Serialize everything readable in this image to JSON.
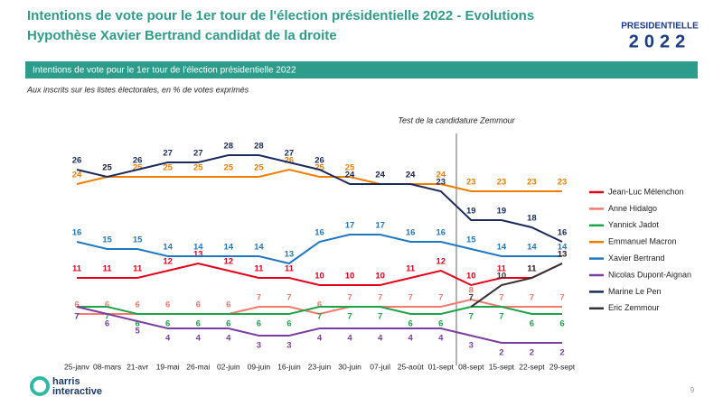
{
  "header": {
    "title_line1": "Intentions de vote pour le 1er tour de l'élection présidentielle 2022 - Evolutions",
    "title_line2": "Hypothèse Xavier Bertrand candidat de la droite",
    "logo_top": "PRESIDENTIELLE",
    "logo_bottom": "2022"
  },
  "banner": "Intentions de vote pour le 1er tour de l'élection présidentielle 2022",
  "note": "Aux inscrits sur les listes électorales, en % de votes exprimés",
  "footer": {
    "brand_line1": "harris",
    "brand_line2": "interactive",
    "page": "9"
  },
  "chart_data": {
    "type": "line",
    "annotation": "Test de la candidature Zemmour",
    "categories": [
      "25-janv",
      "08-mars",
      "21-avr",
      "19-mai",
      "26-mai",
      "02-juin",
      "09-juin",
      "16-juin",
      "23-juin",
      "30-juin",
      "07-juil",
      "25-août",
      "01-sept",
      "08-sept",
      "15-sept",
      "22-sept",
      "29-sept"
    ],
    "ylim": [
      0,
      30
    ],
    "series": [
      {
        "name": "Jean-Luc Mélenchon",
        "color": "#e3001b",
        "values": [
          11,
          11,
          11,
          12,
          13,
          12,
          11,
          11,
          10,
          10,
          10,
          11,
          12,
          10,
          11,
          11,
          13
        ]
      },
      {
        "name": "Anne Hidalgo",
        "color": "#f27a6e",
        "values": [
          6,
          6,
          6,
          6,
          6,
          6,
          7,
          7,
          6,
          7,
          7,
          7,
          7,
          8,
          7,
          7,
          7
        ]
      },
      {
        "name": "Yannick Jadot",
        "color": "#1ea34a",
        "values": [
          7,
          7,
          6,
          6,
          6,
          6,
          6,
          6,
          7,
          7,
          7,
          6,
          6,
          7,
          7,
          6,
          6
        ]
      },
      {
        "name": "Emmanuel Macron",
        "color": "#ef7d00",
        "values": [
          24,
          25,
          25,
          25,
          25,
          25,
          25,
          26,
          25,
          25,
          24,
          24,
          24,
          23,
          23,
          23,
          23
        ]
      },
      {
        "name": "Xavier Bertrand",
        "color": "#1f78c1",
        "values": [
          16,
          15,
          15,
          14,
          14,
          14,
          14,
          13,
          16,
          17,
          17,
          16,
          16,
          15,
          14,
          14,
          14
        ]
      },
      {
        "name": "Nicolas Dupont-Aignan",
        "color": "#7b3fa0",
        "values": [
          7,
          6,
          5,
          4,
          4,
          4,
          3,
          3,
          4,
          4,
          4,
          4,
          4,
          3,
          2,
          2,
          2
        ]
      },
      {
        "name": "Marine Le Pen",
        "color": "#1a2a5c",
        "values": [
          26,
          25,
          26,
          27,
          27,
          28,
          28,
          27,
          26,
          24,
          24,
          24,
          23,
          19,
          19,
          18,
          16
        ]
      },
      {
        "name": "Eric Zemmour",
        "color": "#333333",
        "values": [
          null,
          null,
          null,
          null,
          null,
          null,
          null,
          null,
          null,
          null,
          null,
          null,
          null,
          7,
          10,
          11,
          13
        ]
      }
    ]
  }
}
